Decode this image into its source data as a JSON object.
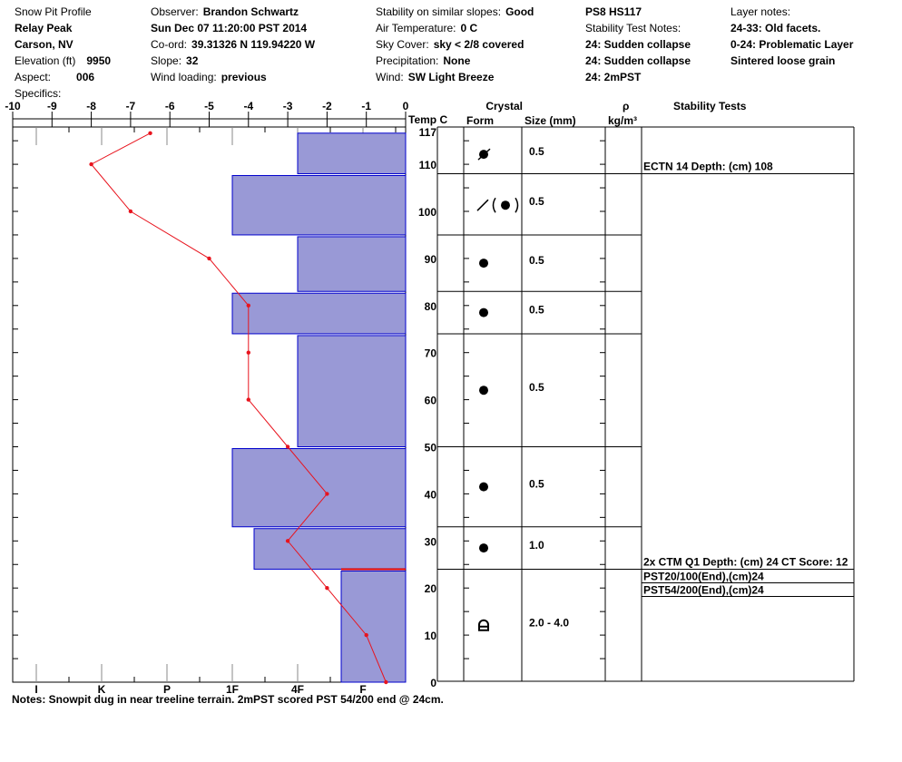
{
  "header": {
    "col1": [
      {
        "label": "Snow Pit Profile",
        "value": ""
      },
      {
        "label": "",
        "value": "Relay Peak"
      },
      {
        "label": "",
        "value": "Carson, NV"
      },
      {
        "label": "Elevation (ft)",
        "value": "9950"
      },
      {
        "label": "Aspect:",
        "value": "006"
      },
      {
        "label": "Specifics:",
        "value": ""
      }
    ],
    "col2": [
      {
        "label": "Observer:",
        "value": "Brandon Schwartz"
      },
      {
        "label": "",
        "value": "Sun Dec 07 11:20:00 PST 2014"
      },
      {
        "label": "Co-ord:",
        "value": "39.31326 N 119.94220 W"
      },
      {
        "label": "Slope:",
        "value": "32"
      },
      {
        "label": "Wind loading:",
        "value": "previous"
      }
    ],
    "col3": [
      {
        "label": "Stability on similar slopes:",
        "value": "Good"
      },
      {
        "label": "Air Temperature:",
        "value": "0 C"
      },
      {
        "label": "Sky Cover:",
        "value": "sky < 2/8 covered"
      },
      {
        "label": "Precipitation:",
        "value": "None"
      },
      {
        "label": "Wind:",
        "value": "SW Light Breeze"
      }
    ],
    "col4": [
      {
        "label": "",
        "value": "PS8 HS117"
      },
      {
        "label": "Stability Test Notes:",
        "value": ""
      },
      {
        "label": "",
        "value": "24: Sudden collapse"
      },
      {
        "label": "",
        "value": "24: Sudden collapse"
      },
      {
        "label": "",
        "value": "24: 2mPST"
      }
    ],
    "col5": [
      {
        "label": "Layer notes:",
        "value": ""
      },
      {
        "label": "",
        "value": "24-33: Old facets."
      },
      {
        "label": "",
        "value": "0-24: Problematic Layer"
      },
      {
        "label": "",
        "value": "Sintered loose grain"
      }
    ]
  },
  "columns": {
    "temp": "Temp C",
    "crystal": "Crystal",
    "form": "Form",
    "size": "Size (mm)",
    "rho": "ρ",
    "density_unit": "kg/m³",
    "stability": "Stability Tests"
  },
  "notes": "Notes:  Snowpit dug in near treeline terrain. 2mPST scored PST 54/200 end @ 24cm.",
  "colors": {
    "hardness_fill": "#9999d6",
    "hardness_stroke": "#0000cc",
    "temp_line": "#e8141e",
    "problem_layer": "#e00000"
  },
  "chart_data": {
    "type": "snow-profile",
    "temp_axis": {
      "label": "Temp C",
      "range": [
        -10,
        0
      ],
      "ticks": [
        "-10",
        "-9",
        "-8",
        "-7",
        "-6",
        "-5",
        "-4",
        "-3",
        "-2",
        "-1",
        "0"
      ]
    },
    "depth_axis": {
      "range": [
        0,
        117
      ],
      "ticks": [
        "0",
        "10",
        "20",
        "30",
        "40",
        "50",
        "60",
        "70",
        "80",
        "90",
        "100",
        "110",
        "117"
      ]
    },
    "hardness_axis": {
      "ticks": [
        "I",
        "K",
        "P",
        "1F",
        "4F",
        "F"
      ]
    },
    "temperature_profile": [
      {
        "depth": 117,
        "temp": -6.5
      },
      {
        "depth": 110,
        "temp": -8
      },
      {
        "depth": 100,
        "temp": -7
      },
      {
        "depth": 90,
        "temp": -5
      },
      {
        "depth": 80,
        "temp": -4
      },
      {
        "depth": 70,
        "temp": -4
      },
      {
        "depth": 60,
        "temp": -4
      },
      {
        "depth": 50,
        "temp": -3
      },
      {
        "depth": 40,
        "temp": -2
      },
      {
        "depth": 30,
        "temp": -3
      },
      {
        "depth": 20,
        "temp": -2
      },
      {
        "depth": 10,
        "temp": -1
      },
      {
        "depth": 0,
        "temp": -0.5
      }
    ],
    "layers": [
      {
        "top": 117,
        "bottom": 108,
        "hardness": "4F",
        "form": "rounding-faceted",
        "size": "0.5"
      },
      {
        "top": 108,
        "bottom": 95,
        "hardness": "1F",
        "form": "faceted-rounded-mix",
        "size": "0.5"
      },
      {
        "top": 95,
        "bottom": 83,
        "hardness": "4F",
        "form": "rounded",
        "size": "0.5"
      },
      {
        "top": 83,
        "bottom": 74,
        "hardness": "1F",
        "form": "rounded",
        "size": "0.5"
      },
      {
        "top": 74,
        "bottom": 50,
        "hardness": "4F",
        "form": "rounded",
        "size": "0.5"
      },
      {
        "top": 50,
        "bottom": 33,
        "hardness": "1F",
        "form": "rounded",
        "size": "0.5"
      },
      {
        "top": 33,
        "bottom": 24,
        "hardness": "1F-",
        "form": "rounded",
        "size": "1.0"
      },
      {
        "top": 24,
        "bottom": 0,
        "hardness": "F+",
        "form": "rounding-depth-hoar",
        "size": "2.0 - 4.0"
      }
    ],
    "problematic_layer_depth": 24,
    "stability_tests": [
      {
        "depth": 108,
        "text": "ECTN 14   Depth: (cm) 108"
      },
      {
        "depth": 24,
        "text": "2x CTM Q1 Depth: (cm) 24 CT Score: 12"
      },
      {
        "depth": 24,
        "text": "PST20/100(End),(cm)24"
      },
      {
        "depth": 24,
        "text": "PST54/200(End),(cm)24"
      }
    ]
  }
}
